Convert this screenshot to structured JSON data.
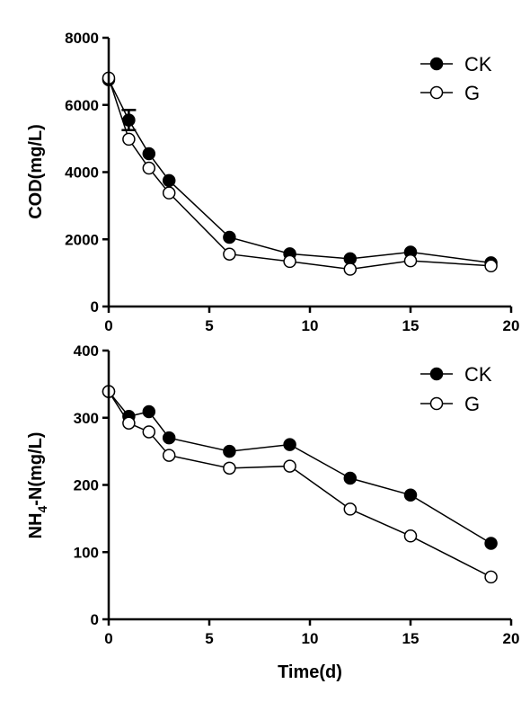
{
  "chart_data": [
    {
      "type": "line",
      "ylabel": "COD(mg/L)",
      "xlabel": "",
      "xlim": [
        0,
        20
      ],
      "ylim": [
        0,
        8000
      ],
      "xticks": [
        "0",
        "5",
        "10",
        "15",
        "20"
      ],
      "yticks": [
        "0",
        "2000",
        "4000",
        "6000",
        "8000"
      ],
      "legend_position": "top-right",
      "series": [
        {
          "name": "CK",
          "marker": "filled-circle",
          "x": [
            0,
            1,
            2,
            3,
            6,
            9,
            12,
            15,
            19
          ],
          "values": [
            6750,
            5550,
            4550,
            3750,
            2060,
            1570,
            1420,
            1620,
            1300
          ],
          "error": [
            0,
            300,
            0,
            0,
            0,
            0,
            0,
            0,
            0
          ]
        },
        {
          "name": "G",
          "marker": "open-circle",
          "x": [
            0,
            1,
            2,
            3,
            6,
            9,
            12,
            15,
            19
          ],
          "values": [
            6800,
            4980,
            4120,
            3380,
            1560,
            1340,
            1110,
            1360,
            1210
          ]
        }
      ]
    },
    {
      "type": "line",
      "ylabel": "NH4-N(mg/L)",
      "ylabel_parts": {
        "main": "NH",
        "subscript": "4",
        "rest": "-N(mg/L)"
      },
      "xlabel": "Time(d)",
      "xlim": [
        0,
        20
      ],
      "ylim": [
        0,
        400
      ],
      "xticks": [
        "0",
        "5",
        "10",
        "15",
        "20"
      ],
      "yticks": [
        "0",
        "100",
        "200",
        "300",
        "400"
      ],
      "legend_position": "top-right",
      "series": [
        {
          "name": "CK",
          "marker": "filled-circle",
          "x": [
            0,
            1,
            2,
            3,
            6,
            9,
            12,
            15,
            19
          ],
          "values": [
            339,
            302,
            309,
            270,
            250,
            260,
            210,
            185,
            113
          ]
        },
        {
          "name": "G",
          "marker": "open-circle",
          "x": [
            0,
            1,
            2,
            3,
            6,
            9,
            12,
            15,
            19
          ],
          "values": [
            339,
            292,
            279,
            244,
            225,
            228,
            164,
            124,
            63
          ]
        }
      ]
    }
  ]
}
